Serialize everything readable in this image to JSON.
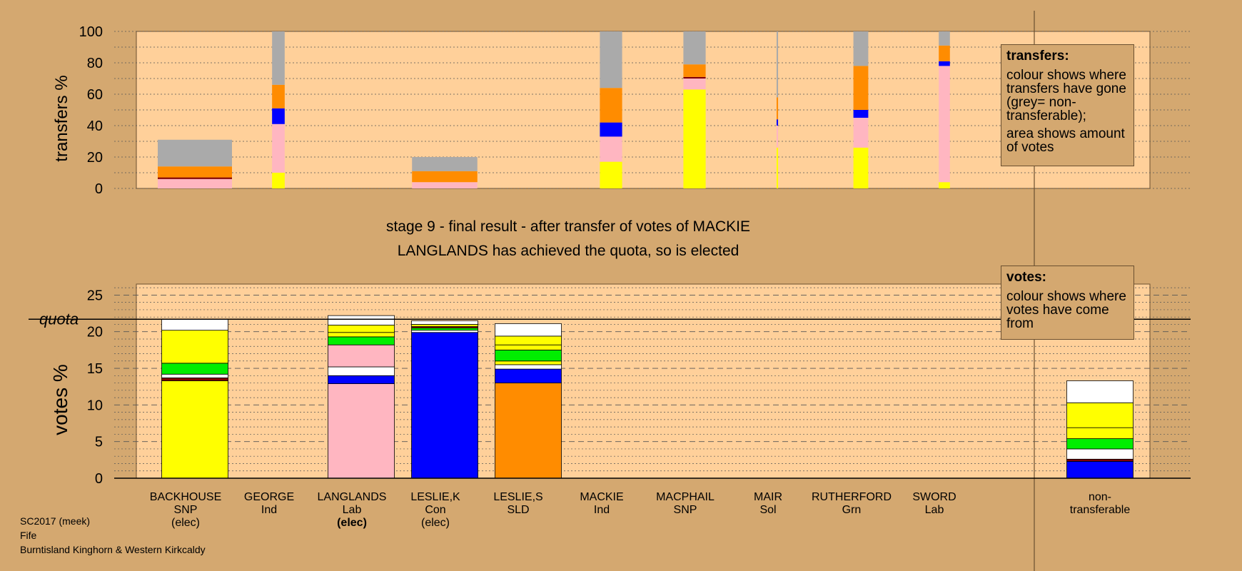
{
  "chart_data": [
    {
      "type": "bar",
      "subtype": "stacked-variable-width",
      "ylabel": "transfers %",
      "ylim": [
        0,
        100
      ],
      "yticks": [
        "0",
        "20",
        "40",
        "60",
        "80",
        "100"
      ],
      "categories": [
        "BACKHOUSE",
        "GEORGE",
        "LANGLANDS",
        "LESLIE,K",
        "LESLIE,S",
        "MACKIE",
        "MACPHAIL",
        "MAIR",
        "RUTHERFORD",
        "SWORD"
      ],
      "bars": [
        {
          "candidate": "BACKHOUSE",
          "relative_votes": 1.0,
          "segments": [
            {
              "color": "#ffb6c1",
              "value": 6
            },
            {
              "color": "#800000",
              "value": 1
            },
            {
              "color": "#ff8c00",
              "value": 7
            },
            {
              "color": "#aaaaaa",
              "value": 17
            }
          ]
        },
        {
          "candidate": "GEORGE",
          "relative_votes": 0.17,
          "segments": [
            {
              "color": "#ffff00",
              "value": 10
            },
            {
              "color": "#ffb6c1",
              "value": 31
            },
            {
              "color": "#0000ff",
              "value": 10
            },
            {
              "color": "#ff8c00",
              "value": 15
            },
            {
              "color": "#aaaaaa",
              "value": 34
            }
          ]
        },
        {
          "candidate": "LESLIE,K",
          "relative_votes": 0.88,
          "segments": [
            {
              "color": "#ffb6c1",
              "value": 4
            },
            {
              "color": "#ff8c00",
              "value": 7
            },
            {
              "color": "#aaaaaa",
              "value": 9
            }
          ]
        },
        {
          "candidate": "MACKIE",
          "relative_votes": 0.3,
          "segments": [
            {
              "color": "#ffff00",
              "value": 17
            },
            {
              "color": "#ffb6c1",
              "value": 16
            },
            {
              "color": "#0000ff",
              "value": 9
            },
            {
              "color": "#ff8c00",
              "value": 22
            },
            {
              "color": "#aaaaaa",
              "value": 36
            }
          ]
        },
        {
          "candidate": "MACPHAIL",
          "relative_votes": 0.3,
          "segments": [
            {
              "color": "#ffff00",
              "value": 63
            },
            {
              "color": "#ffb6c1",
              "value": 7
            },
            {
              "color": "#800000",
              "value": 1
            },
            {
              "color": "#ff8c00",
              "value": 8
            },
            {
              "color": "#aaaaaa",
              "value": 21
            }
          ]
        },
        {
          "candidate": "MAIR",
          "relative_votes": 0.02,
          "segments": [
            {
              "color": "#ffff00",
              "value": 26
            },
            {
              "color": "#ffb6c1",
              "value": 14
            },
            {
              "color": "#0000ff",
              "value": 4
            },
            {
              "color": "#ff8c00",
              "value": 14
            },
            {
              "color": "#aaaaaa",
              "value": 42
            }
          ]
        },
        {
          "candidate": "RUTHERFORD",
          "relative_votes": 0.2,
          "segments": [
            {
              "color": "#ffff00",
              "value": 26
            },
            {
              "color": "#ffb6c1",
              "value": 19
            },
            {
              "color": "#0000ff",
              "value": 5
            },
            {
              "color": "#ff8c00",
              "value": 28
            },
            {
              "color": "#aaaaaa",
              "value": 22
            }
          ]
        },
        {
          "candidate": "SWORD",
          "relative_votes": 0.15,
          "segments": [
            {
              "color": "#ffff00",
              "value": 4
            },
            {
              "color": "#ffb6c1",
              "value": 74
            },
            {
              "color": "#0000ff",
              "value": 3
            },
            {
              "color": "#ff8c00",
              "value": 10
            },
            {
              "color": "#aaaaaa",
              "value": 9
            }
          ]
        }
      ],
      "legend": {
        "title": "transfers:",
        "lines": [
          "colour shows where transfers have gone (grey= non-transferable);",
          "area shows amount of votes"
        ]
      }
    },
    {
      "type": "bar",
      "subtype": "stacked",
      "ylabel": "votes %",
      "ylim": [
        0,
        26.5
      ],
      "yticks": [
        "0",
        "5",
        "10",
        "15",
        "20",
        "25"
      ],
      "quota": 21.7,
      "quota_label": "quota",
      "categories": [
        "BACKHOUSE",
        "GEORGE",
        "LANGLANDS",
        "LESLIE,K",
        "LESLIE,S",
        "MACKIE",
        "MACPHAIL",
        "MAIR",
        "RUTHERFORD",
        "SWORD",
        "non-transferable"
      ],
      "stacks": [
        {
          "candidate": "BACKHOUSE",
          "segments": [
            {
              "color": "#ffff00",
              "value": 13.3
            },
            {
              "color": "#800000",
              "value": 0.4
            },
            {
              "color": "#ffffff",
              "value": 0.5
            },
            {
              "color": "#00ee00",
              "value": 1.5
            },
            {
              "color": "#ffff00",
              "value": 4.5
            },
            {
              "color": "#ffffff",
              "value": 1.5
            }
          ]
        },
        {
          "candidate": "LANGLANDS",
          "segments": [
            {
              "color": "#ffb6c1",
              "value": 12.9
            },
            {
              "color": "#0000ff",
              "value": 1.1
            },
            {
              "color": "#ffffff",
              "value": 1.2
            },
            {
              "color": "#ffb6c1",
              "value": 3.0
            },
            {
              "color": "#00ee00",
              "value": 1.1
            },
            {
              "color": "#ffff00",
              "value": 0.6
            },
            {
              "color": "#ffff00",
              "value": 1.0
            },
            {
              "color": "#ffffff",
              "value": 1.3
            }
          ]
        },
        {
          "candidate": "LESLIE,K",
          "segments": [
            {
              "color": "#0000ff",
              "value": 19.9
            },
            {
              "color": "#ffffff",
              "value": 0.3
            },
            {
              "color": "#00ee00",
              "value": 0.3
            },
            {
              "color": "#800000",
              "value": 0.2
            },
            {
              "color": "#ffff00",
              "value": 0.3
            },
            {
              "color": "#ffffff",
              "value": 0.5
            }
          ]
        },
        {
          "candidate": "LESLIE,S",
          "segments": [
            {
              "color": "#ff8c00",
              "value": 13.0
            },
            {
              "color": "#0000ff",
              "value": 1.9
            },
            {
              "color": "#ffffff",
              "value": 0.6
            },
            {
              "color": "#ffff00",
              "value": 0.5
            },
            {
              "color": "#00ee00",
              "value": 1.5
            },
            {
              "color": "#ffff00",
              "value": 0.7
            },
            {
              "color": "#ffff00",
              "value": 1.2
            },
            {
              "color": "#ffffff",
              "value": 1.7
            }
          ]
        },
        {
          "candidate": "non-transferable",
          "segments": [
            {
              "color": "#0000ff",
              "value": 2.3
            },
            {
              "color": "#800000",
              "value": 0.3
            },
            {
              "color": "#ffffff",
              "value": 1.4
            },
            {
              "color": "#00ee00",
              "value": 1.4
            },
            {
              "color": "#ffff00",
              "value": 1.5
            },
            {
              "color": "#ffff00",
              "value": 3.4
            },
            {
              "color": "#ffffff",
              "value": 3.0
            }
          ]
        }
      ],
      "legend": {
        "title": "votes:",
        "lines": [
          "colour shows where votes have come from"
        ]
      }
    }
  ],
  "headline": {
    "line1": "stage 9 - final result - after transfer of votes of MACKIE",
    "line2": "LANGLANDS has achieved the quota, so is elected"
  },
  "candidates": [
    {
      "name": "BACKHOUSE",
      "party": "SNP",
      "status": "(elec)",
      "bold_status": false
    },
    {
      "name": "GEORGE",
      "party": "Ind",
      "status": "",
      "bold_status": false
    },
    {
      "name": "LANGLANDS",
      "party": "Lab",
      "status": "(elec)",
      "bold_status": true
    },
    {
      "name": "LESLIE,K",
      "party": "Con",
      "status": "(elec)",
      "bold_status": false
    },
    {
      "name": "LESLIE,S",
      "party": "SLD",
      "status": "",
      "bold_status": false
    },
    {
      "name": "MACKIE",
      "party": "Ind",
      "status": "",
      "bold_status": false
    },
    {
      "name": "MACPHAIL",
      "party": "SNP",
      "status": "",
      "bold_status": false
    },
    {
      "name": "MAIR",
      "party": "Sol",
      "status": "",
      "bold_status": false
    },
    {
      "name": "RUTHERFORD",
      "party": "Grn",
      "status": "",
      "bold_status": false
    },
    {
      "name": "SWORD",
      "party": "Lab",
      "status": "",
      "bold_status": false
    }
  ],
  "nontransferable_label": {
    "line1": "non-",
    "line2": "transferable"
  },
  "footer": {
    "line1": "SC2017 (meek)",
    "line2": "Fife",
    "line3": "Burntisland Kinghorn & Western Kirkcaldy"
  },
  "colors": {
    "background": "#d4a870",
    "plot_area": "#ffd09a",
    "snp": "#ffff00",
    "lab": "#ffb6c1",
    "con": "#0000ff",
    "sld": "#ff8c00",
    "grn": "#00ee00",
    "non_transferable": "#aaaaaa"
  }
}
